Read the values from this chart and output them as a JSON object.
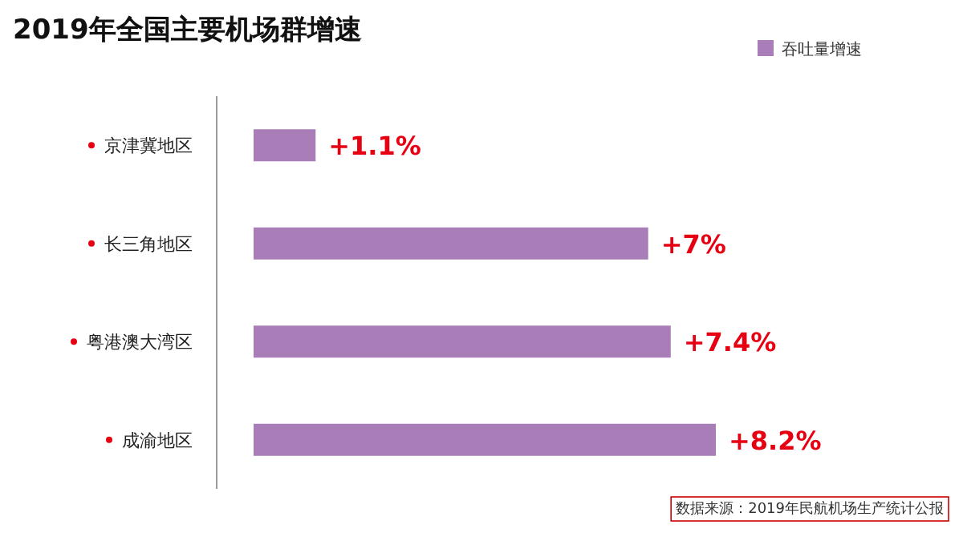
{
  "chart_data": {
    "type": "bar",
    "orientation": "horizontal",
    "title": "2019年全国主要机场群增速",
    "categories": [
      "京津冀地区",
      "长三角地区",
      "粤港澳大湾区",
      "成渝地区"
    ],
    "series": [
      {
        "name": "吞吐量增速",
        "color": "#a97db8",
        "values": [
          1.1,
          7,
          7.4,
          8.2
        ],
        "value_labels": [
          "+1.1%",
          "+7%",
          "+7.4%",
          "+8.2%"
        ]
      }
    ],
    "legend": "top right",
    "annotations": [
      "数据来源：2019年民航机场生产统计公报"
    ]
  }
}
